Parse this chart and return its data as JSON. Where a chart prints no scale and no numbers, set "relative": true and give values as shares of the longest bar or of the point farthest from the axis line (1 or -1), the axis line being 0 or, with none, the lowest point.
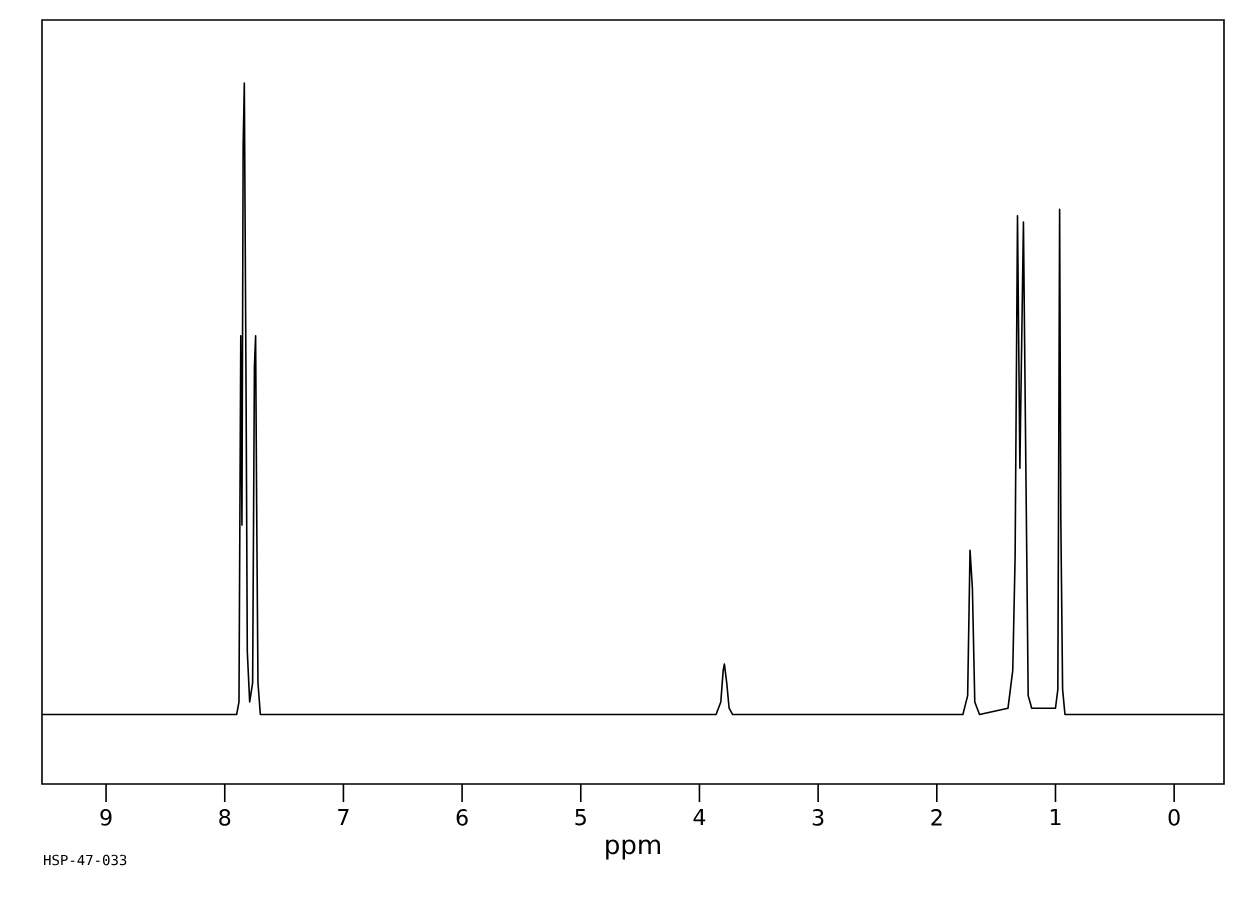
{
  "chart_data": {
    "type": "line",
    "relative": true,
    "xlabel": "ppm",
    "annotations": [
      "HSP-47-033"
    ],
    "xlim": [
      9.54,
      -0.42
    ],
    "xticks": [
      9,
      8,
      7,
      6,
      5,
      4,
      3,
      2,
      1,
      0
    ],
    "grid": false,
    "marker": "none",
    "line_style": "solid",
    "series": [
      {
        "color": "#000000",
        "x": [
          9.54,
          7.9,
          7.88,
          7.865,
          7.855,
          7.845,
          7.835,
          7.82,
          7.81,
          7.79,
          7.765,
          7.75,
          7.74,
          7.73,
          7.72,
          7.7,
          3.86,
          3.82,
          3.8,
          3.79,
          3.77,
          3.75,
          3.72,
          1.78,
          1.74,
          1.72,
          1.7,
          1.68,
          1.64,
          1.4,
          1.36,
          1.34,
          1.32,
          1.3,
          1.27,
          1.25,
          1.23,
          1.2,
          1.0,
          0.98,
          0.965,
          0.955,
          0.94,
          0.92,
          -0.42
        ],
        "values": [
          0,
          0,
          0.02,
          0.6,
          0.3,
          0.9,
          1.0,
          0.5,
          0.1,
          0.02,
          0.05,
          0.55,
          0.6,
          0.3,
          0.05,
          0,
          0,
          0.02,
          0.07,
          0.08,
          0.05,
          0.01,
          0,
          0,
          0.03,
          0.26,
          0.2,
          0.02,
          0,
          0.01,
          0.07,
          0.25,
          0.79,
          0.39,
          0.78,
          0.4,
          0.03,
          0.01,
          0.01,
          0.04,
          0.8,
          0.31,
          0.04,
          0,
          0
        ]
      }
    ]
  }
}
